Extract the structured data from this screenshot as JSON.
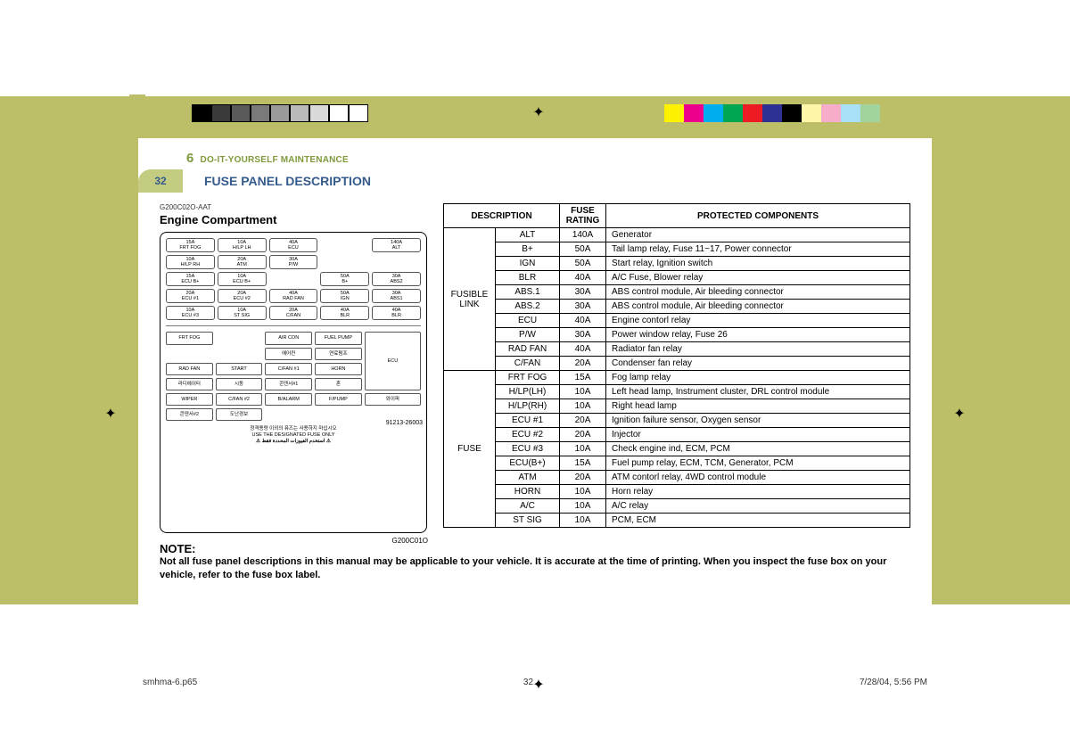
{
  "colors": {
    "olive": "#bdbe68",
    "header_green": "#7e9a3d",
    "title_blue": "#355b8c",
    "badge_bg": "#c4cc82",
    "swatches_left": [
      "#000000",
      "#3a3a3a",
      "#5a5a5a",
      "#7a7a7a",
      "#9a9a9a",
      "#bababa",
      "#dadada",
      "#ffffff",
      "#ffffff"
    ],
    "swatches_right": [
      "#fff200",
      "#ec008c",
      "#00aeef",
      "#00a651",
      "#ed1c24",
      "#2e3192",
      "#000000",
      "#fff6a9",
      "#f7adc9",
      "#a7e0f7",
      "#a3d39c"
    ]
  },
  "header": {
    "chapter_num": "6",
    "chapter_title": "DO-IT-YOURSELF MAINTENANCE",
    "page_number": "32",
    "section_title": "FUSE PANEL DESCRIPTION"
  },
  "left": {
    "code": "G200C02O-AAT",
    "subhead": "Engine Compartment",
    "diagram_code": "G200C01O",
    "part_number": "91213-26003",
    "note_kr": "정격용량 이외의 퓨즈는 사용하지 마십시오",
    "note_en": "USE THE DESIGNATED FUSE ONLY",
    "note_ar": "⚠ استخدم الفيوزات المحددة فقط ⚠",
    "fuse_rows": [
      [
        "15A\nFRT FOG",
        "10A\nH/LP LH",
        "40A\nECU",
        "",
        "140A\nALT"
      ],
      [
        "10A\nH/LP RH",
        "20A\nATM",
        "30A\nP/W",
        "",
        ""
      ],
      [
        "15A\nECU B+",
        "10A\nECU B+",
        "",
        "50A\nB+",
        "30A\nABS2"
      ],
      [
        "20A\nECU #1",
        "20A\nECU #2",
        "40A\nRAD FAN",
        "50A\nIGN",
        "30A\nABS1"
      ],
      [
        "10A\nECU #3",
        "10A\nST SIG",
        "20A\nC/FAN",
        "40A\nBLR",
        "40A\nBLR"
      ]
    ],
    "relay_rows": [
      [
        "FRT FOG",
        "",
        "AIR CON",
        "FUEL PUMP",
        ""
      ],
      [
        "",
        "",
        "에어컨",
        "연료펌프",
        "ECU"
      ],
      [
        "RAD FAN",
        "START",
        "C/FAN #1",
        "HORN",
        ""
      ],
      [
        "라디에이터",
        "시동",
        "콘덴서#1",
        "혼",
        ""
      ],
      [
        "WIPER",
        "C/FAN #2",
        "B/ALARM",
        "F/PUMP",
        ""
      ],
      [
        "와이퍼",
        "콘덴서#2",
        "도난경보",
        "",
        ""
      ]
    ]
  },
  "table": {
    "headers": [
      "DESCRIPTION",
      "FUSE RATING",
      "PROTECTED  COMPONENTS"
    ],
    "groups": [
      {
        "label": "FUSIBLE LINK",
        "rows": [
          [
            "ALT",
            "140A",
            "Generator"
          ],
          [
            "B+",
            "50A",
            "Tail lamp relay, Fuse 11~17, Power connector"
          ],
          [
            "IGN",
            "50A",
            "Start relay, Ignition switch"
          ],
          [
            "BLR",
            "40A",
            "A/C Fuse, Blower relay"
          ],
          [
            "ABS.1",
            "30A",
            "ABS control module, Air bleeding connector"
          ],
          [
            "ABS.2",
            "30A",
            "ABS control module, Air bleeding connector"
          ],
          [
            "ECU",
            "40A",
            "Engine contorl relay"
          ],
          [
            "P/W",
            "30A",
            "Power window relay, Fuse 26"
          ],
          [
            "RAD FAN",
            "40A",
            "Radiator fan relay"
          ],
          [
            "C/FAN",
            "20A",
            "Condenser fan relay"
          ]
        ]
      },
      {
        "label": "FUSE",
        "rows": [
          [
            "FRT FOG",
            "15A",
            "Fog lamp relay"
          ],
          [
            "H/LP(LH)",
            "10A",
            "Left head lamp, Instrument cluster, DRL control module"
          ],
          [
            "H/LP(RH)",
            "10A",
            "Right head lamp"
          ],
          [
            "ECU #1",
            "20A",
            "Ignition failure sensor, Oxygen sensor"
          ],
          [
            "ECU #2",
            "20A",
            "Injector"
          ],
          [
            "ECU #3",
            "10A",
            "Check engine ind, ECM, PCM"
          ],
          [
            "ECU(B+)",
            "15A",
            "Fuel pump relay, ECM, TCM, Generator, PCM"
          ],
          [
            "ATM",
            "20A",
            "ATM contorl relay, 4WD control module"
          ],
          [
            "HORN",
            "10A",
            "Horn relay"
          ],
          [
            "A/C",
            "10A",
            "A/C relay"
          ],
          [
            "ST SIG",
            "10A",
            "PCM, ECM"
          ]
        ]
      }
    ]
  },
  "note": {
    "head": "NOTE:",
    "body": "Not all fuse panel descriptions in this manual may be applicable to your vehicle. It is accurate at the time of printing. When you inspect the fuse box on your vehicle, refer to the fuse box label."
  },
  "footer": {
    "file": "smhma-6.p65",
    "page": "32",
    "timestamp": "7/28/04, 5:56 PM"
  }
}
